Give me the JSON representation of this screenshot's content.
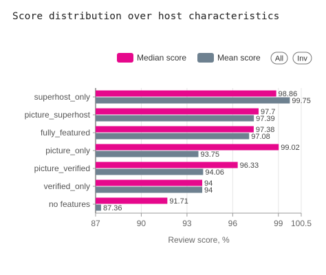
{
  "title": "Score distribution over host characteristics",
  "legend": {
    "items": [
      {
        "label": "Median score",
        "color": "#e6088c"
      },
      {
        "label": "Mean score",
        "color": "#6e8190"
      }
    ],
    "all_label": "All",
    "inv_label": "Inv"
  },
  "chart_data": {
    "type": "bar",
    "orientation": "horizontal",
    "title": "Score distribution over host characteristics",
    "categories": [
      "superhost_only",
      "picture_superhost",
      "fully_featured",
      "picture_only",
      "picture_verified",
      "verified_only",
      "no features"
    ],
    "series": [
      {
        "name": "Median score",
        "color": "#e6088c",
        "values": [
          98.86,
          97.7,
          97.38,
          99.02,
          96.33,
          94,
          91.71
        ]
      },
      {
        "name": "Mean score",
        "color": "#6e8190",
        "values": [
          99.75,
          97.39,
          97.08,
          93.75,
          94.06,
          94,
          87.36
        ]
      }
    ],
    "xlabel": "Review score, %",
    "ylabel": "",
    "xlim": [
      87,
      100.5
    ],
    "xticks": [
      "87",
      "90",
      "93",
      "96",
      "99",
      "100.5"
    ],
    "grid": true,
    "legend_position": "top-right"
  }
}
